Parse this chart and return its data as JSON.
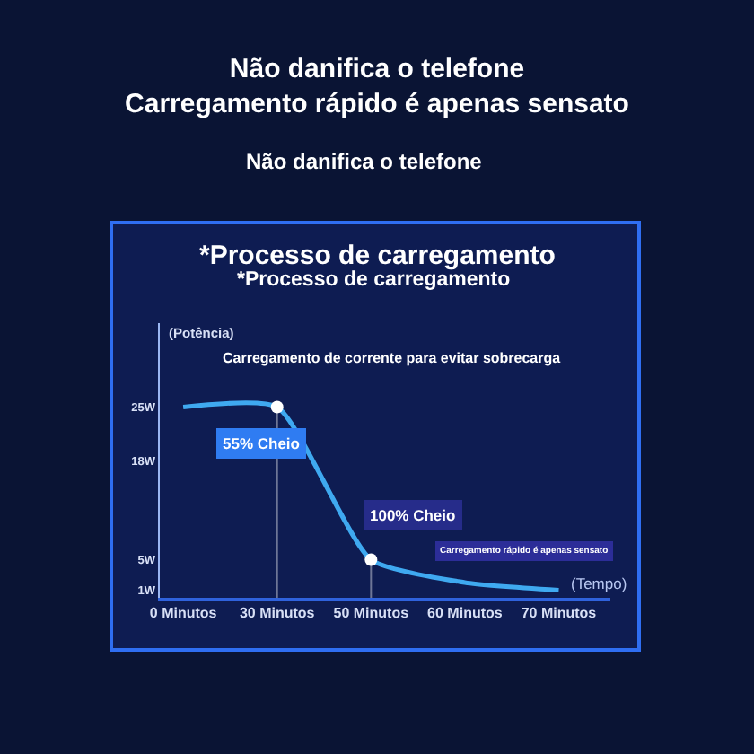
{
  "chart_data": {
    "type": "line",
    "title": "Não danifica o telefone\nCarregamento rápido é apenas sensato",
    "subtitle": "Não danifica o telefone",
    "ylabel": "(Potência)",
    "xlabel": "(Tempo)",
    "annotations": [
      "*Processo de carregamento",
      "*Processo de carregamento",
      "Carregamento de corrente para evitar sobrecarga",
      {
        "text": "55% Cheio",
        "x": "30 Minutos",
        "y": 25
      },
      {
        "text": "100% Cheio",
        "x": "50 Minutos",
        "y": 5
      },
      "Carregamento rápido é apenas sensato"
    ],
    "categories": [
      "0 Minutos",
      "30 Minutos",
      "50 Minutos",
      "60 Minutos",
      "70 Minutos"
    ],
    "series": [
      {
        "color": "#3fa9f0",
        "values": [
          25,
          25,
          5,
          2,
          1
        ]
      },
      {
        "type": "lollipop",
        "x": [
          "30 Minutos",
          "50 Minutos"
        ],
        "color": "#ffffff",
        "marker": "circle",
        "values": [
          25,
          5
        ]
      }
    ],
    "ylim": [
      0,
      36
    ],
    "yticks": [
      {
        "value": 25,
        "label": "25W"
      },
      {
        "value": 18,
        "label": "18W"
      },
      {
        "value": 5,
        "label": "5W"
      },
      {
        "value": 1,
        "label": "1W"
      }
    ]
  }
}
